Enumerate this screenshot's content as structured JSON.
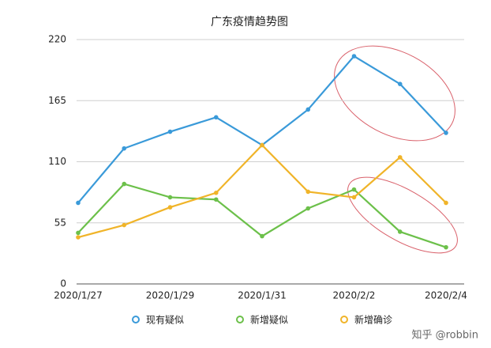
{
  "chart_data": {
    "type": "line",
    "title": "广东疫情趋势图",
    "categories": [
      "2020/1/27",
      null,
      "2020/1/29",
      null,
      "2020/1/31",
      null,
      "2020/2/2",
      null,
      "2020/2/4"
    ],
    "series": [
      {
        "name": "现有疑似",
        "color": "#3a9ad9",
        "values": [
          73,
          122,
          137,
          150,
          125,
          157,
          205,
          180,
          136
        ]
      },
      {
        "name": "新增疑似",
        "color": "#6cc04a",
        "values": [
          46,
          90,
          78,
          76,
          43,
          68,
          85,
          47,
          33
        ]
      },
      {
        "name": "新增确诊",
        "color": "#f0b429",
        "values": [
          42,
          53,
          69,
          82,
          125,
          83,
          78,
          114,
          73
        ]
      }
    ],
    "ylim": [
      0,
      220
    ],
    "yticks": [
      0,
      55,
      110,
      165,
      220
    ],
    "grid": true
  },
  "watermark": "知乎 @robbin"
}
